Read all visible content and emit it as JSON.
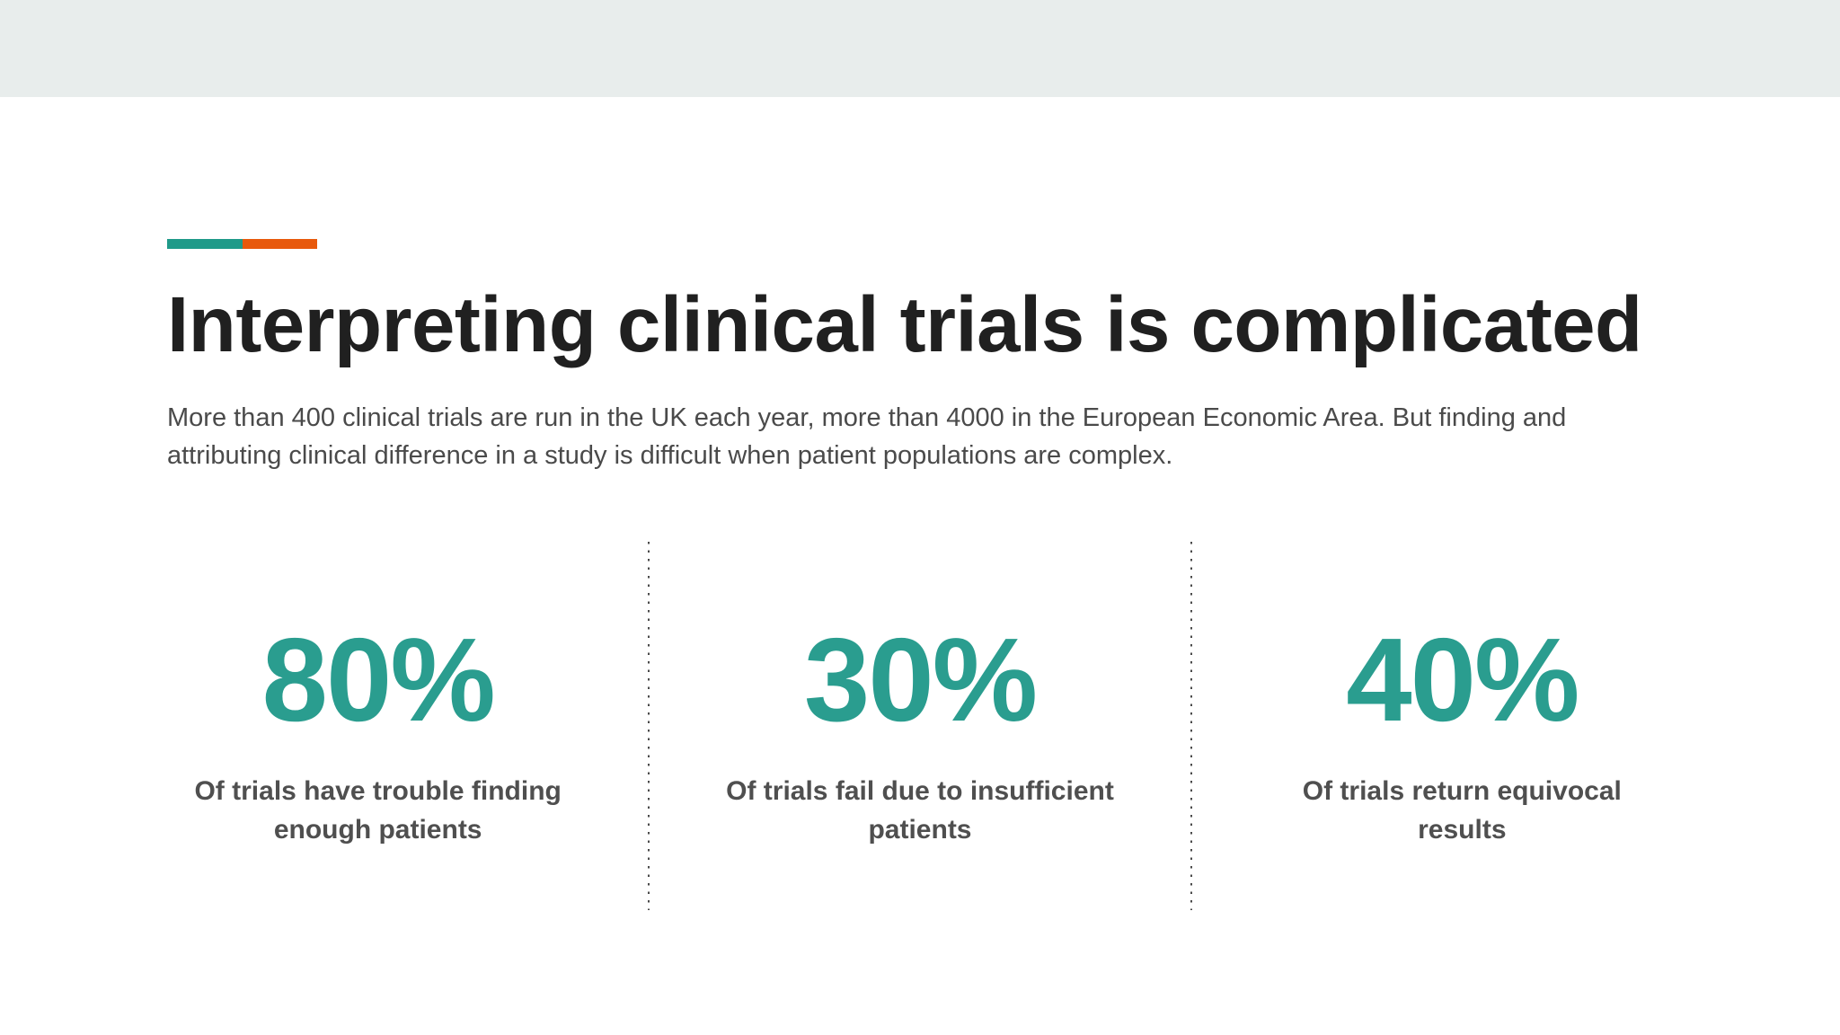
{
  "slide": {
    "top_strip_color": "#e8edec",
    "accent_colors": {
      "teal": "#1f9a89",
      "orange": "#e8590c"
    },
    "title": "Interpreting clinical trials is complicated",
    "intro_lines": [
      "More than 400 clinical trials are run in the UK each year, more than 4000 in the European Economic Area. But finding and",
      "attributing clinical difference in a study is difficult when patient populations are complex."
    ],
    "stat_value_color": "#2a9d8f",
    "stats": [
      {
        "value": "80%",
        "label_lines": [
          "Of trials have trouble finding",
          "enough patients"
        ]
      },
      {
        "value": "30%",
        "label_lines": [
          "Of trials fail due to insufficient",
          "patients"
        ]
      },
      {
        "value": "40%",
        "label_lines": [
          "Of trials return equivocal",
          "results"
        ]
      }
    ]
  }
}
